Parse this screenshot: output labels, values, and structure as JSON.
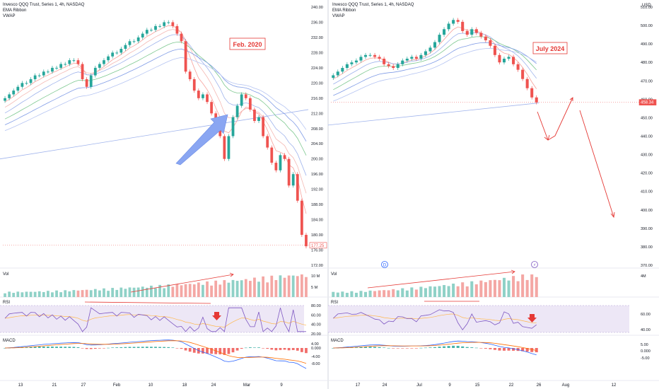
{
  "panels": [
    {
      "header": [
        "Invesco QQQ Trust, Series 1, 4h, NASDAQ",
        "EMA Ribbon",
        "VWAP"
      ],
      "currency": "",
      "annotation": "Feb. 2020",
      "last_price": "177.25",
      "volume_label": "Vol",
      "rsi_label": "RSI",
      "macd_label": "MACD",
      "x_ticks": [
        "13",
        "21",
        "27",
        "Feb",
        "10",
        "18",
        "24",
        "Mar",
        "9"
      ],
      "price_ticks": [
        "240.00",
        "236.00",
        "232.00",
        "228.00",
        "224.00",
        "220.00",
        "216.00",
        "212.00",
        "208.00",
        "204.00",
        "200.00",
        "196.00",
        "192.00",
        "188.00",
        "184.00",
        "180.00",
        "176.00",
        "172.00"
      ],
      "volume_ticks": [
        "10 M",
        "5 M"
      ],
      "rsi_ticks": [
        "80.00",
        "60.00",
        "40.00",
        "20.00"
      ],
      "macd_ticks": [
        "4.00",
        "0.000",
        "-4.00",
        "-8.00"
      ]
    },
    {
      "header": [
        "Invesco QQQ Trust, Series 1, 4h, NASDAQ",
        "EMA Ribbon",
        "VWAP"
      ],
      "currency": "USD",
      "annotation": "July 2024",
      "last_price": "458.34",
      "volume_label": "Vol",
      "rsi_label": "RSI",
      "macd_label": "MACD",
      "x_ticks": [
        "17",
        "24",
        "Jul",
        "9",
        "15",
        "22",
        "26",
        "Aug",
        "12"
      ],
      "price_ticks": [
        "510.00",
        "500.00",
        "490.00",
        "480.00",
        "470.00",
        "460.00",
        "450.00",
        "440.00",
        "430.00",
        "420.00",
        "410.00",
        "400.00",
        "390.00",
        "380.00",
        "370.00"
      ],
      "volume_ticks": [
        "4M"
      ],
      "rsi_ticks": [
        "60.00",
        "40.00"
      ],
      "macd_ticks": [
        "5.00",
        "0.000",
        "-5.00"
      ],
      "event_badges": [
        "D",
        "⚡"
      ]
    }
  ],
  "chart_data": [
    {
      "type": "candlestick",
      "title": "Invesco QQQ Trust, Series 1, 4h, NASDAQ",
      "annotation": "Feb. 2020",
      "ylim": [
        172,
        240
      ],
      "x_labels": [
        "13",
        "21",
        "27",
        "Feb",
        "10",
        "18",
        "24",
        "Mar",
        "9"
      ],
      "close": [
        216,
        217,
        218,
        219,
        220,
        220,
        221,
        222,
        222,
        223,
        223,
        224,
        224,
        225,
        225,
        226,
        226,
        225,
        221,
        219,
        222,
        224,
        225,
        226,
        227,
        228,
        228,
        229,
        230,
        231,
        231,
        232,
        233,
        234,
        234,
        235,
        235,
        236,
        236,
        235,
        233,
        231,
        223,
        221,
        218,
        216,
        217,
        215,
        212,
        208,
        206,
        200,
        206,
        211,
        214,
        217,
        216,
        213,
        210,
        211,
        206,
        203,
        199,
        197,
        201,
        200,
        193,
        196,
        189,
        180,
        177
      ],
      "last": 177.25,
      "ema_levels": [
        231,
        228,
        224,
        220,
        217,
        212
      ],
      "vwap_start": 200,
      "vwap_end": 213
    },
    {
      "type": "candlestick",
      "title": "Invesco QQQ Trust, Series 1, 4h, NASDAQ",
      "annotation": "July 2024",
      "ylim": [
        370,
        510
      ],
      "x_labels": [
        "17",
        "24",
        "Jul",
        "9",
        "15",
        "22",
        "26",
        "Aug",
        "12"
      ],
      "close": [
        473,
        475,
        477,
        479,
        480,
        481,
        483,
        484,
        484,
        483,
        482,
        479,
        478,
        477,
        479,
        481,
        482,
        483,
        482,
        484,
        486,
        488,
        491,
        495,
        498,
        501,
        503,
        502,
        497,
        495,
        498,
        496,
        494,
        492,
        489,
        484,
        480,
        482,
        483,
        479,
        476,
        471,
        466,
        461,
        458.34
      ],
      "last": 458.34,
      "ema_levels": [
        487,
        483,
        476,
        470,
        462
      ],
      "vwap_start": 446,
      "vwap_end": 458,
      "projection_path": [
        [
          28,
          459
        ],
        [
          34,
          441
        ],
        [
          40,
          462
        ],
        [
          52,
          390
        ]
      ]
    }
  ],
  "colors": {
    "up": "#26a69a",
    "down": "#ef5350",
    "annotation": "#e53935",
    "arrow_blue": "#7b9cf0",
    "ema_red": "#f7a19b",
    "ema_blue": "#7f9be6",
    "ema_green": "#7dc88f",
    "rsi_line": "#7e57c2",
    "rsi_band": "#ede7f6",
    "macd_line": "#2962ff",
    "signal_line": "#ff6d00"
  }
}
